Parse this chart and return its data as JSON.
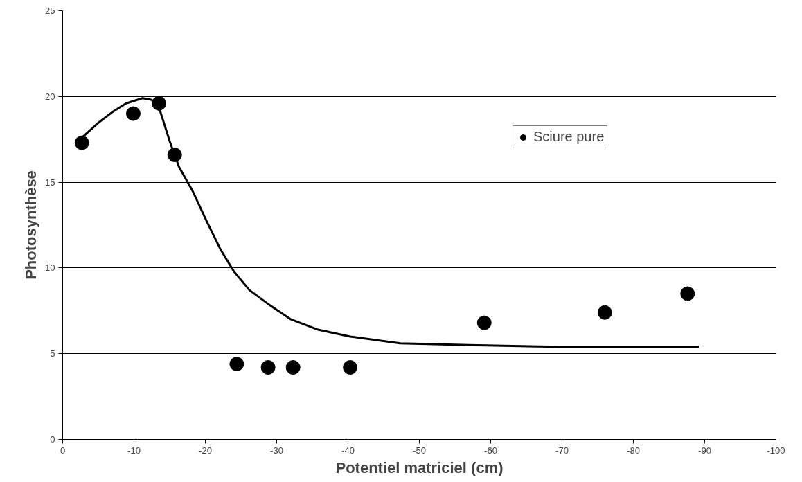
{
  "chart_data": {
    "type": "scatter",
    "xlabel": "Potentiel matriciel (cm)",
    "ylabel": "Photosynthèse",
    "xlim": [
      0,
      -100
    ],
    "xticks": [
      0,
      -10,
      -20,
      -30,
      -40,
      -50,
      -60,
      -70,
      -80,
      -90,
      -100
    ],
    "ylim": [
      0,
      25
    ],
    "yticks": [
      0,
      5,
      10,
      15,
      20,
      25
    ],
    "grid": "y",
    "legend": "top right",
    "series": [
      {
        "name": "Sciure pure",
        "marker": "circle",
        "color": "#000000",
        "x": [
          -2.7,
          -9.9,
          -13.5,
          -15.7,
          -24.4,
          -28.8,
          -32.3,
          -40.3,
          -59.1,
          -76.0,
          -87.6
        ],
        "values": [
          17.3,
          19.0,
          19.6,
          16.6,
          4.4,
          4.2,
          4.2,
          4.2,
          6.8,
          7.4,
          8.5
        ]
      },
      {
        "type": "line",
        "color": "#000000",
        "line_style": "solid",
        "x": [
          -2.7,
          -5.1,
          -7.0,
          -8.9,
          -11.2,
          -12.5,
          -13.7,
          -15.0,
          -16.3,
          -18.2,
          -20.1,
          -22.1,
          -24.0,
          -26.2,
          -28.8,
          -32.0,
          -35.8,
          -40.3,
          -47.3,
          -56.9,
          -69.7,
          -82.5,
          -89.2
        ],
        "values": [
          17.6,
          18.5,
          19.1,
          19.6,
          19.9,
          19.8,
          19.1,
          17.4,
          15.9,
          14.5,
          12.8,
          11.1,
          9.8,
          8.7,
          7.9,
          7.0,
          6.4,
          6.0,
          5.6,
          5.5,
          5.4,
          5.4,
          5.4
        ]
      }
    ]
  }
}
